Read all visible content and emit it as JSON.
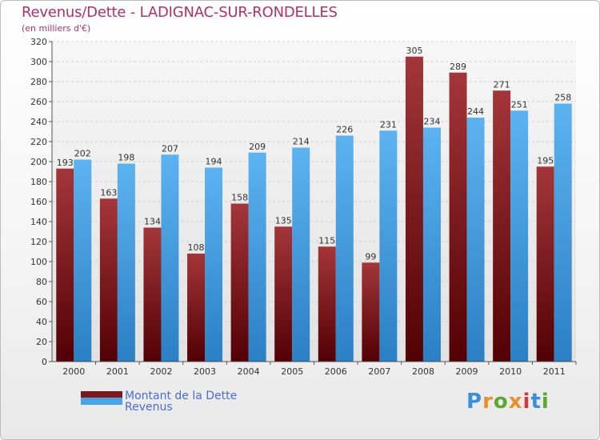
{
  "header": {
    "title": "Revenus/Dette - LADIGNAC-SUR-RONDELLES",
    "subtitle": "(en milliers d'€)"
  },
  "legend": {
    "items": [
      {
        "label": "Montant de la Dette",
        "color": "#7a1a1f"
      },
      {
        "label": "Revenus",
        "color": "#4aa3e6"
      }
    ]
  },
  "logo": {
    "text": "Proxiti"
  },
  "chart_data": {
    "type": "bar",
    "categories": [
      "2000",
      "2001",
      "2002",
      "2003",
      "2004",
      "2005",
      "2006",
      "2007",
      "2008",
      "2009",
      "2010",
      "2011"
    ],
    "series": [
      {
        "name": "Montant de la Dette",
        "values": [
          193,
          163,
          134,
          108,
          158,
          135,
          115,
          99,
          305,
          289,
          271,
          195
        ],
        "color": "#7a1a1f"
      },
      {
        "name": "Revenus",
        "values": [
          202,
          198,
          207,
          194,
          209,
          214,
          226,
          231,
          234,
          244,
          251,
          258
        ],
        "color": "#4aa3e6"
      }
    ],
    "title": "Revenus/Dette - LADIGNAC-SUR-RONDELLES",
    "ylabel": "(en milliers d'€)",
    "ylim": [
      0,
      320
    ],
    "ytick_step": 20,
    "grid": true,
    "legend_position": "bottom-left"
  }
}
